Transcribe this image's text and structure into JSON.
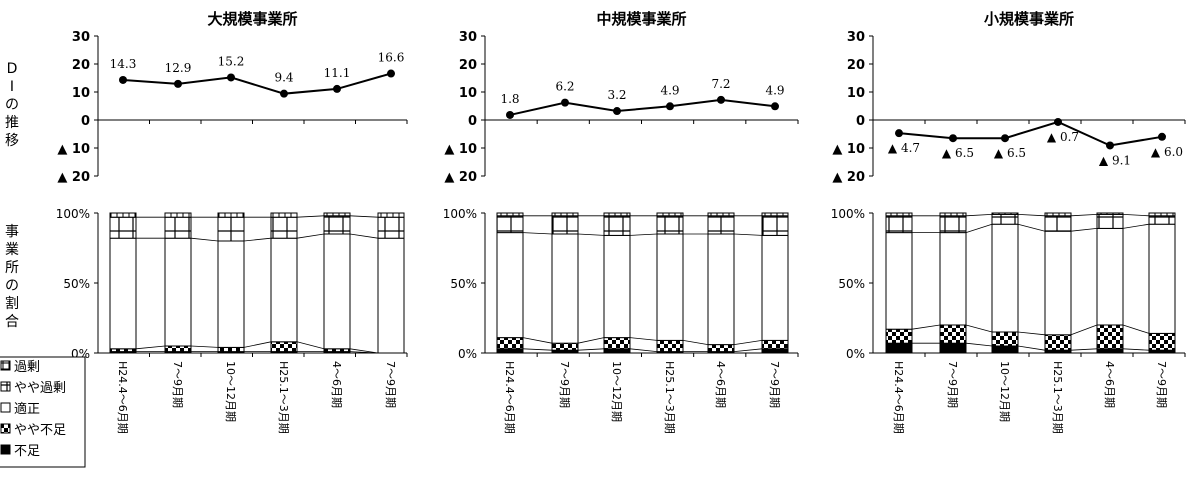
{
  "vertical_labels": {
    "di": [
      "D",
      "I",
      "の",
      "推",
      "移"
    ],
    "share": [
      "事",
      "業",
      "所",
      "の",
      "割",
      "合"
    ]
  },
  "legend": [
    {
      "label": "過剰",
      "pattern": "excess"
    },
    {
      "label": "やや過剰",
      "pattern": "slightly_excess"
    },
    {
      "label": "適正",
      "pattern": "appropriate"
    },
    {
      "label": "やや不足",
      "pattern": "slightly_short"
    },
    {
      "label": "不足",
      "pattern": "short"
    }
  ],
  "categories": [
    "H24.4～6月期",
    "7～9月期",
    "10～12月期",
    "H25.1～3月期",
    "4～6月期",
    "7～9月期"
  ],
  "di_axis": {
    "ylim": [
      -20,
      30
    ],
    "ticks": [
      {
        "v": 30,
        "label": "30"
      },
      {
        "v": 20,
        "label": "20"
      },
      {
        "v": 10,
        "label": "10"
      },
      {
        "v": 0,
        "label": "0"
      },
      {
        "v": -10,
        "label": "▲ 10"
      },
      {
        "v": -20,
        "label": "▲ 20"
      }
    ]
  },
  "share_axis": {
    "ylim": [
      0,
      100
    ],
    "ticks": [
      {
        "v": 100,
        "label": "100%"
      },
      {
        "v": 50,
        "label": "50%"
      },
      {
        "v": 0,
        "label": "0%"
      }
    ]
  },
  "chart_data": [
    {
      "type": "line",
      "title": "大規模事業所",
      "categories": [
        "H24.4～6月期",
        "7～9月期",
        "10～12月期",
        "H25.1～3月期",
        "4～6月期",
        "7～9月期"
      ],
      "values": [
        14.3,
        12.9,
        15.2,
        9.4,
        11.1,
        16.6
      ],
      "value_labels": [
        "14.3",
        "12.9",
        "15.2",
        "9.4",
        "11.1",
        "16.6"
      ],
      "ylim": [
        -20,
        30
      ]
    },
    {
      "type": "line",
      "title": "中規模事業所",
      "categories": [
        "H24.4～6月期",
        "7～9月期",
        "10～12月期",
        "H25.1～3月期",
        "4～6月期",
        "7～9月期"
      ],
      "values": [
        1.8,
        6.2,
        3.2,
        4.9,
        7.2,
        4.9
      ],
      "value_labels": [
        "1.8",
        "6.2",
        "3.2",
        "4.9",
        "7.2",
        "4.9"
      ],
      "ylim": [
        -20,
        30
      ]
    },
    {
      "type": "line",
      "title": "小規模事業所",
      "categories": [
        "H24.4～6月期",
        "7～9月期",
        "10～12月期",
        "H25.1～3月期",
        "4～6月期",
        "7～9月期"
      ],
      "values": [
        -4.7,
        -6.5,
        -6.5,
        -0.7,
        -9.1,
        -6.0
      ],
      "value_labels": [
        "▲ 4.7",
        "▲ 6.5",
        "▲ 6.5",
        "▲ 0.7",
        "▲ 9.1",
        "▲ 6.0"
      ],
      "ylim": [
        -20,
        30
      ]
    },
    {
      "type": "bar",
      "stacked": true,
      "percent": true,
      "group": "大規模事業所",
      "categories": [
        "H24.4～6月期",
        "7～9月期",
        "10～12月期",
        "H25.1～3月期",
        "4～6月期",
        "7～9月期"
      ],
      "series": [
        {
          "name": "不足",
          "values": [
            1,
            1,
            1,
            1,
            1,
            0
          ]
        },
        {
          "name": "やや不足",
          "values": [
            2,
            4,
            3,
            7,
            2,
            0
          ]
        },
        {
          "name": "適正",
          "values": [
            79,
            77,
            76,
            74,
            82,
            82
          ]
        },
        {
          "name": "やや過剰",
          "values": [
            15,
            15,
            17,
            15,
            13,
            15
          ]
        },
        {
          "name": "過剰",
          "values": [
            3,
            3,
            3,
            3,
            2,
            3
          ]
        }
      ],
      "ylim": [
        0,
        100
      ]
    },
    {
      "type": "bar",
      "stacked": true,
      "percent": true,
      "group": "中規模事業所",
      "categories": [
        "H24.4～6月期",
        "7～9月期",
        "10～12月期",
        "H25.1～3月期",
        "4～6月期",
        "7～9月期"
      ],
      "series": [
        {
          "name": "不足",
          "values": [
            3,
            2,
            3,
            1,
            1,
            3
          ]
        },
        {
          "name": "やや不足",
          "values": [
            8,
            5,
            8,
            8,
            5,
            6
          ]
        },
        {
          "name": "適正",
          "values": [
            75,
            78,
            73,
            76,
            79,
            75
          ]
        },
        {
          "name": "やや過剰",
          "values": [
            12,
            13,
            14,
            13,
            13,
            14
          ]
        },
        {
          "name": "過剰",
          "values": [
            2,
            2,
            2,
            2,
            2,
            2
          ]
        }
      ],
      "ylim": [
        0,
        100
      ]
    },
    {
      "type": "bar",
      "stacked": true,
      "percent": true,
      "group": "小規模事業所",
      "categories": [
        "H24.4～6月期",
        "7～9月期",
        "10～12月期",
        "H25.1～3月期",
        "4～6月期",
        "7～9月期"
      ],
      "series": [
        {
          "name": "不足",
          "values": [
            7,
            7,
            5,
            2,
            3,
            2
          ]
        },
        {
          "name": "やや不足",
          "values": [
            10,
            13,
            10,
            11,
            17,
            12
          ]
        },
        {
          "name": "適正",
          "values": [
            69,
            66,
            77,
            74,
            69,
            78
          ]
        },
        {
          "name": "やや過剰",
          "values": [
            12,
            12,
            7,
            11,
            10,
            6
          ]
        },
        {
          "name": "過剰",
          "values": [
            2,
            2,
            1,
            2,
            1,
            2
          ]
        }
      ],
      "ylim": [
        0,
        100
      ]
    }
  ]
}
